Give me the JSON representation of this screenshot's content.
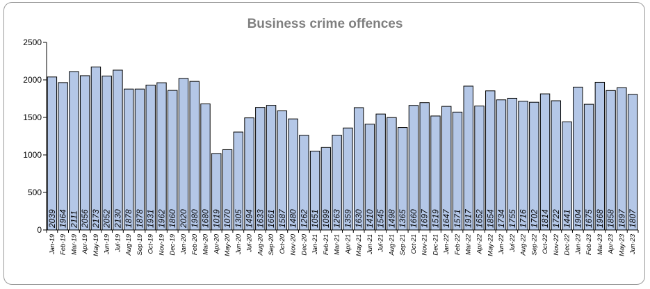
{
  "chart_data": {
    "type": "bar",
    "title": "Business crime offences",
    "xlabel": "",
    "ylabel": "",
    "ylim": [
      0,
      2500
    ],
    "yticks": [
      0,
      500,
      1000,
      1500,
      2000,
      2500
    ],
    "grid": false,
    "legend": "none",
    "bar_color": "#b4c7e7",
    "categories": [
      "Jan-19",
      "Feb-19",
      "Mar-19",
      "Apr-19",
      "May-19",
      "Jun-19",
      "Jul-19",
      "Aug-19",
      "Sep-19",
      "Oct-19",
      "Nov-19",
      "Dec-19",
      "Jan-20",
      "Feb-20",
      "Mar-20",
      "Apr-20",
      "May-20",
      "Jun-20",
      "Jul-20",
      "Aug-20",
      "Sep-20",
      "Oct-20",
      "Nov-20",
      "Dec-20",
      "Jan-21",
      "Feb-21",
      "Mar-21",
      "Apr-21",
      "May-21",
      "Jun-21",
      "Jul-21",
      "Aug-21",
      "Sep-21",
      "Oct-21",
      "Nov-21",
      "Dec-21",
      "Jan-22",
      "Feb-22",
      "Mar-22",
      "Apr-22",
      "May-22",
      "Jun-22",
      "Jul-22",
      "Aug-22",
      "Sep-22",
      "Oct-22",
      "Nov-22",
      "Dec-22",
      "Jan-23",
      "Feb-23",
      "Mar-23",
      "Apr-23",
      "May-23",
      "Jun-23"
    ],
    "values": [
      2039,
      1964,
      2111,
      2056,
      2173,
      2052,
      2130,
      1878,
      1878,
      1931,
      1962,
      1860,
      2020,
      1980,
      1680,
      1019,
      1070,
      1305,
      1494,
      1633,
      1661,
      1587,
      1480,
      1262,
      1051,
      1099,
      1263,
      1359,
      1630,
      1410,
      1545,
      1498,
      1365,
      1660,
      1697,
      1519,
      1647,
      1571,
      1917,
      1652,
      1854,
      1734,
      1755,
      1716,
      1702,
      1814,
      1722,
      1441,
      1904,
      1675,
      1968,
      1858,
      1897,
      1807
    ]
  }
}
